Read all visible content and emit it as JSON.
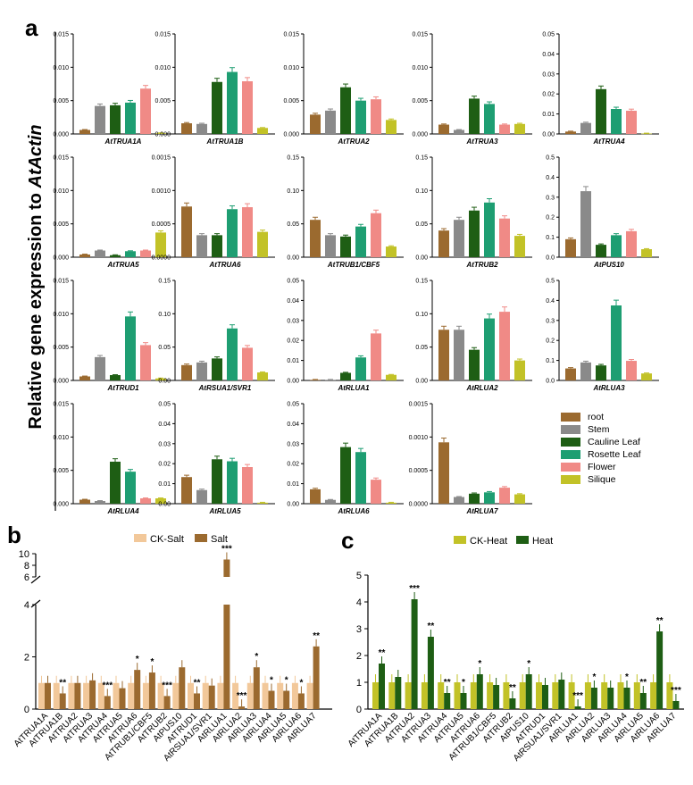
{
  "figure": {
    "ylabel_prefix": "Relative gene expression to ",
    "ylabel_gene": "AtActin"
  },
  "colors": {
    "root": "#9B6A2F",
    "stem": "#8A8A8A",
    "cauline": "#1E5E14",
    "rosette": "#1E9E72",
    "flower": "#F08A86",
    "silique": "#C2C227",
    "ck_salt": "#F2C89A",
    "salt": "#9B6A2F",
    "ck_heat": "#C2C227",
    "heat": "#1E5E14"
  },
  "chart_data": [
    {
      "type": "bar",
      "panel": "a",
      "series_names": [
        "root",
        "Stem",
        "Cauline Leaf",
        "Rosette Leaf",
        "Flower",
        "Silique"
      ],
      "subplots": [
        {
          "gene": "AtTRUA1A",
          "ylim": [
            0,
            0.015
          ],
          "ticks": [
            "0.000",
            "0.005",
            "0.010",
            "0.015"
          ],
          "values": [
            0.0006,
            0.0042,
            0.0043,
            0.0047,
            0.0068,
            0.0001
          ]
        },
        {
          "gene": "AtTRUA1B",
          "ylim": [
            0,
            0.015
          ],
          "ticks": [
            "0.000",
            "0.005",
            "0.010",
            "0.015"
          ],
          "values": [
            0.0016,
            0.0015,
            0.0078,
            0.0093,
            0.0079,
            0.0009
          ]
        },
        {
          "gene": "AtTRUA2",
          "ylim": [
            0,
            0.015
          ],
          "ticks": [
            "0.000",
            "0.005",
            "0.010",
            "0.015"
          ],
          "values": [
            0.0029,
            0.0035,
            0.007,
            0.005,
            0.0052,
            0.0021
          ]
        },
        {
          "gene": "AtTRUA3",
          "ylim": [
            0,
            0.015
          ],
          "ticks": [
            "0.000",
            "0.005",
            "0.010",
            "0.015"
          ],
          "values": [
            0.0014,
            0.0006,
            0.0053,
            0.0045,
            0.0014,
            0.0015
          ]
        },
        {
          "gene": "AtTRUA4",
          "ylim": [
            0,
            0.05
          ],
          "ticks": [
            "0.00",
            "0.01",
            "0.02",
            "0.03",
            "0.04",
            "0.05"
          ],
          "values": [
            0.0012,
            0.0055,
            0.0224,
            0.0125,
            0.0116,
            0.0002
          ]
        },
        {
          "gene": "AtTRUA5",
          "ylim": [
            0,
            0.015
          ],
          "ticks": [
            "0.000",
            "0.005",
            "0.010",
            "0.015"
          ],
          "values": [
            0.0004,
            0.001,
            0.0003,
            0.0009,
            0.001,
            0.0037
          ]
        },
        {
          "gene": "AtTRUA6",
          "ylim": [
            0,
            0.0015
          ],
          "ticks": [
            "0.0000",
            "0.0005",
            "0.0010",
            "0.0015"
          ],
          "values": [
            0.00076,
            0.00033,
            0.00033,
            0.00072,
            0.00075,
            0.00038
          ]
        },
        {
          "gene": "AtTRUB1/CBF5",
          "ylim": [
            0,
            0.15
          ],
          "ticks": [
            "0.00",
            "0.05",
            "0.10",
            "0.15"
          ],
          "values": [
            0.056,
            0.033,
            0.031,
            0.046,
            0.066,
            0.016
          ]
        },
        {
          "gene": "AtTRUB2",
          "ylim": [
            0,
            0.15
          ],
          "ticks": [
            "0.00",
            "0.05",
            "0.10",
            "0.15"
          ],
          "values": [
            0.04,
            0.056,
            0.07,
            0.082,
            0.058,
            0.032
          ]
        },
        {
          "gene": "AtPUS10",
          "ylim": [
            0,
            0.5
          ],
          "ticks": [
            "0.0",
            "0.1",
            "0.2",
            "0.3",
            "0.4",
            "0.5"
          ],
          "values": [
            0.09,
            0.33,
            0.062,
            0.11,
            0.13,
            0.04
          ]
        },
        {
          "gene": "AtTRUD1",
          "ylim": [
            0,
            0.015
          ],
          "ticks": [
            "0.000",
            "0.005",
            "0.010",
            "0.015"
          ],
          "values": [
            0.0006,
            0.0035,
            0.0008,
            0.0096,
            0.0053,
            0.0003
          ]
        },
        {
          "gene": "AtRSUA1/SVR1",
          "ylim": [
            0,
            0.15
          ],
          "ticks": [
            "0.00",
            "0.05",
            "0.10",
            "0.15"
          ],
          "values": [
            0.023,
            0.027,
            0.033,
            0.078,
            0.049,
            0.012
          ]
        },
        {
          "gene": "AtRLUA1",
          "ylim": [
            0,
            0.05
          ],
          "ticks": [
            "0.00",
            "0.01",
            "0.02",
            "0.03",
            "0.04",
            "0.05"
          ],
          "values": [
            0.0003,
            0.0003,
            0.0038,
            0.0115,
            0.0235,
            0.0028
          ]
        },
        {
          "gene": "AtRLUA2",
          "ylim": [
            0,
            0.15
          ],
          "ticks": [
            "0.00",
            "0.05",
            "0.10",
            "0.15"
          ],
          "values": [
            0.076,
            0.076,
            0.046,
            0.093,
            0.103,
            0.03
          ]
        },
        {
          "gene": "AtRLUA3",
          "ylim": [
            0,
            0.5
          ],
          "ticks": [
            "0.0",
            "0.1",
            "0.2",
            "0.3",
            "0.4",
            "0.5"
          ],
          "values": [
            0.06,
            0.09,
            0.075,
            0.375,
            0.098,
            0.035
          ]
        },
        {
          "gene": "AtRLUA4",
          "ylim": [
            0,
            0.015
          ],
          "ticks": [
            "0.000",
            "0.005",
            "0.010",
            "0.015"
          ],
          "values": [
            0.0006,
            0.0004,
            0.0063,
            0.0048,
            0.0008,
            0.0008
          ]
        },
        {
          "gene": "AtRLUA5",
          "ylim": [
            0,
            0.05
          ],
          "ticks": [
            "0.00",
            "0.01",
            "0.02",
            "0.03",
            "0.04",
            "0.05"
          ],
          "values": [
            0.0133,
            0.0068,
            0.0222,
            0.0212,
            0.0183,
            0.0005
          ]
        },
        {
          "gene": "AtRLUA6",
          "ylim": [
            0,
            0.05
          ],
          "ticks": [
            "0.00",
            "0.01",
            "0.02",
            "0.03",
            "0.04",
            "0.05"
          ],
          "values": [
            0.0072,
            0.0019,
            0.0283,
            0.0258,
            0.012,
            0.0005
          ]
        },
        {
          "gene": "AtRLUA7",
          "ylim": [
            0,
            0.0015
          ],
          "ticks": [
            "0.0000",
            "0.0005",
            "0.0010",
            "0.0015"
          ],
          "values": [
            0.00092,
            0.0001,
            0.00015,
            0.00017,
            0.00024,
            0.00014
          ]
        }
      ]
    },
    {
      "type": "bar",
      "panel": "b",
      "legend": [
        "CK-Salt",
        "Salt"
      ],
      "categories": [
        "AtTRUA1A",
        "AtTRUA1B",
        "AtTRUA2",
        "AtTRUA3",
        "AtTRUA4",
        "AtTRUA5",
        "AtTRUA6",
        "AtTRUB1/CBF5",
        "AtTRUB2",
        "AtPUS10",
        "AtTRUD1",
        "AtRSUA1/SVR1",
        "AtRLUA1",
        "AtRLUA2",
        "AtRLUA3",
        "AtRLUA4",
        "AtRLUA5",
        "AtRLUA6",
        "AtRLUA7"
      ],
      "series": [
        {
          "name": "CK-Salt",
          "values": [
            1,
            1,
            1,
            1,
            1,
            1,
            1,
            1,
            1,
            1,
            1,
            1,
            1,
            1,
            1,
            1,
            1,
            1,
            1
          ]
        },
        {
          "name": "Salt",
          "values": [
            1.0,
            0.6,
            1.0,
            1.1,
            0.5,
            0.8,
            1.5,
            1.4,
            0.5,
            1.6,
            0.6,
            0.9,
            9.0,
            0.1,
            1.6,
            0.7,
            0.7,
            0.6,
            2.4
          ]
        }
      ],
      "significance": [
        "",
        "**",
        "",
        "",
        "***",
        "",
        "*",
        "*",
        "***",
        "",
        "**",
        "",
        "***",
        "***",
        "*",
        "*",
        "*",
        "*",
        "**"
      ],
      "yticks": [
        "0",
        "2",
        "4",
        "6",
        "8",
        "10"
      ]
    },
    {
      "type": "bar",
      "panel": "c",
      "legend": [
        "CK-Heat",
        "Heat"
      ],
      "categories": [
        "AtTRUA1A",
        "AtTRUA1B",
        "AtTRUA2",
        "AtTRUA3",
        "AtTRUA4",
        "AtTRUA5",
        "AtTRUA6",
        "AtTRUB1/CBF5",
        "AtTRUB2",
        "AtPUS10",
        "AtTRUD1",
        "AtRSUA1/SVR1",
        "AtRLUA1",
        "AtRLUA2",
        "AtRLUA3",
        "AtRLUA4",
        "AtRLUA5",
        "AtRLUA6",
        "AtRLUA7"
      ],
      "series": [
        {
          "name": "CK-Heat",
          "values": [
            1,
            1,
            1,
            1,
            1,
            1,
            1,
            1,
            1,
            1,
            1,
            1,
            1,
            1,
            1,
            1,
            1,
            1,
            1
          ]
        },
        {
          "name": "Heat",
          "values": [
            1.7,
            1.2,
            4.1,
            2.7,
            0.6,
            0.6,
            1.3,
            0.9,
            0.4,
            1.3,
            0.9,
            1.1,
            0.1,
            0.8,
            0.8,
            0.8,
            0.6,
            2.9,
            0.3
          ]
        }
      ],
      "significance": [
        "**",
        "",
        "***",
        "**",
        "**",
        "*",
        "*",
        "",
        "**",
        "*",
        "",
        "",
        "***",
        "*",
        "",
        "*",
        "**",
        "**",
        "***"
      ],
      "ylim": [
        0,
        5
      ],
      "yticks": [
        "0",
        "1",
        "2",
        "3",
        "4",
        "5"
      ]
    }
  ]
}
